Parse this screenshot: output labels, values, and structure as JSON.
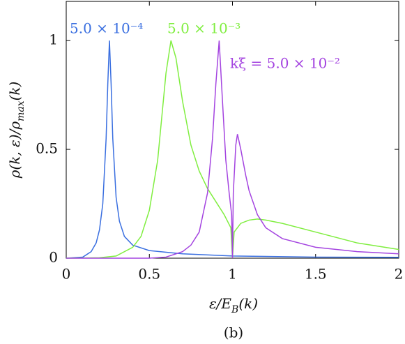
{
  "chart_data": {
    "type": "line",
    "xlabel": [
      "ε/E",
      "B",
      "(k)"
    ],
    "ylabel": [
      "ρ(k, ε)/ρ",
      "max",
      "(k)"
    ],
    "caption": "(b)",
    "xlim": [
      0,
      2
    ],
    "xticks": [
      0,
      0.5,
      1,
      1.5,
      2
    ],
    "ylim": [
      0,
      1.18
    ],
    "yticks": [
      0,
      0.5,
      1
    ],
    "series": [
      {
        "name": "5.0 × 10⁻⁴",
        "color": "#3a6fe0",
        "x": [
          0,
          0.1,
          0.15,
          0.18,
          0.2,
          0.22,
          0.24,
          0.25,
          0.26,
          0.27,
          0.28,
          0.3,
          0.32,
          0.35,
          0.4,
          0.5,
          0.7,
          1.0,
          1.5,
          2
        ],
        "values": [
          0,
          0.005,
          0.03,
          0.07,
          0.13,
          0.25,
          0.55,
          0.8,
          1,
          0.8,
          0.55,
          0.28,
          0.17,
          0.1,
          0.06,
          0.035,
          0.02,
          0.01,
          0.005,
          0.004
        ]
      },
      {
        "name": "5.0 × 10⁻³",
        "color": "#80ee40",
        "x": [
          0,
          0.2,
          0.3,
          0.4,
          0.45,
          0.5,
          0.55,
          0.6,
          0.63,
          0.66,
          0.7,
          0.75,
          0.8,
          0.85,
          0.9,
          0.95,
          0.99,
          1.0,
          1.01,
          1.05,
          1.1,
          1.15,
          1.2,
          1.3,
          1.5,
          1.75,
          2
        ],
        "values": [
          0,
          0.002,
          0.01,
          0.05,
          0.1,
          0.22,
          0.45,
          0.85,
          1,
          0.92,
          0.72,
          0.52,
          0.4,
          0.32,
          0.26,
          0.2,
          0.14,
          0,
          0.12,
          0.16,
          0.175,
          0.18,
          0.175,
          0.16,
          0.12,
          0.07,
          0.04
        ]
      },
      {
        "name": "kξ = 5.0 × 10⁻²",
        "color": "#a444e0",
        "x": [
          0,
          0.5,
          0.6,
          0.7,
          0.75,
          0.8,
          0.85,
          0.88,
          0.9,
          0.92,
          0.94,
          0.96,
          0.98,
          0.995,
          1.0,
          1.005,
          1.02,
          1.03,
          1.05,
          1.08,
          1.1,
          1.15,
          1.2,
          1.3,
          1.5,
          1.75,
          2
        ],
        "values": [
          0,
          0,
          0.005,
          0.03,
          0.06,
          0.12,
          0.3,
          0.55,
          0.8,
          1,
          0.72,
          0.45,
          0.3,
          0.2,
          0,
          0.3,
          0.52,
          0.57,
          0.5,
          0.38,
          0.31,
          0.2,
          0.14,
          0.09,
          0.05,
          0.03,
          0.02
        ]
      }
    ]
  }
}
